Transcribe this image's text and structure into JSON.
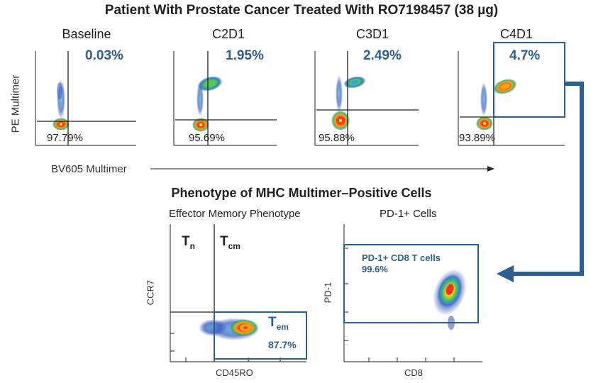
{
  "header": {
    "title": "Patient With Prostate Cancer Treated With RO7198457 (38 µg)"
  },
  "timepoints": [
    {
      "label": "Baseline",
      "multimer_pos_pct": "0.03%",
      "double_neg_pct": "97.79%"
    },
    {
      "label": "C2D1",
      "multimer_pos_pct": "1.95%",
      "double_neg_pct": "95.69%"
    },
    {
      "label": "C3D1",
      "multimer_pos_pct": "2.49%",
      "double_neg_pct": "95.88%"
    },
    {
      "label": "C4D1",
      "multimer_pos_pct": "4.7%",
      "double_neg_pct": "93.89%"
    }
  ],
  "axes": {
    "y_label": "PE Multimer",
    "x_label": "BV605 Multimer"
  },
  "phenotype": {
    "title": "Phenotype of MHC Multimer–Positive Cells",
    "effector": {
      "title": "Effector Memory Phenotype",
      "y_label": "CCR7",
      "x_label": "CD45RO",
      "tn_main": "T",
      "tn_sub": "n",
      "tcm_main": "T",
      "tcm_sub": "cm",
      "tem_main": "T",
      "tem_sub": "em",
      "tem_pct": "87.7%"
    },
    "pd1": {
      "title": "PD-1+ Cells",
      "y_label": "PD-1",
      "x_label": "CD8",
      "box_label": "PD-1+ CD8 T cells",
      "box_pct": "99.6%"
    }
  },
  "colors": {
    "accent": "#2b5f92",
    "gate": "#2b5f92",
    "axis": "#222222"
  }
}
